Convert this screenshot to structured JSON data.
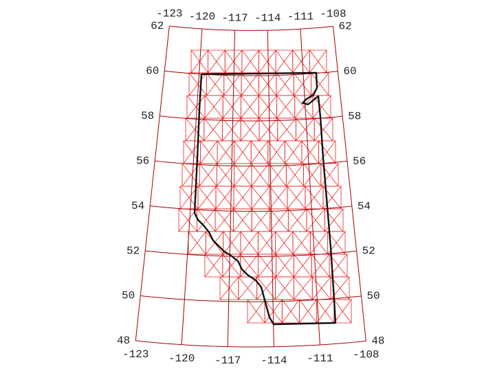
{
  "map": {
    "longitude_labels_top": [
      "-123",
      "-120",
      "-117",
      "-114",
      "-111",
      "-108"
    ],
    "longitude_labels_bottom": [
      "-123",
      "-120",
      "-117",
      "-114",
      "-111",
      "-108"
    ],
    "latitude_labels_left": [
      "48",
      "50",
      "52",
      "54",
      "56",
      "58",
      "60",
      "62"
    ],
    "latitude_labels_right": [
      "48",
      "50",
      "52",
      "54",
      "56",
      "58",
      "60",
      "62"
    ]
  }
}
